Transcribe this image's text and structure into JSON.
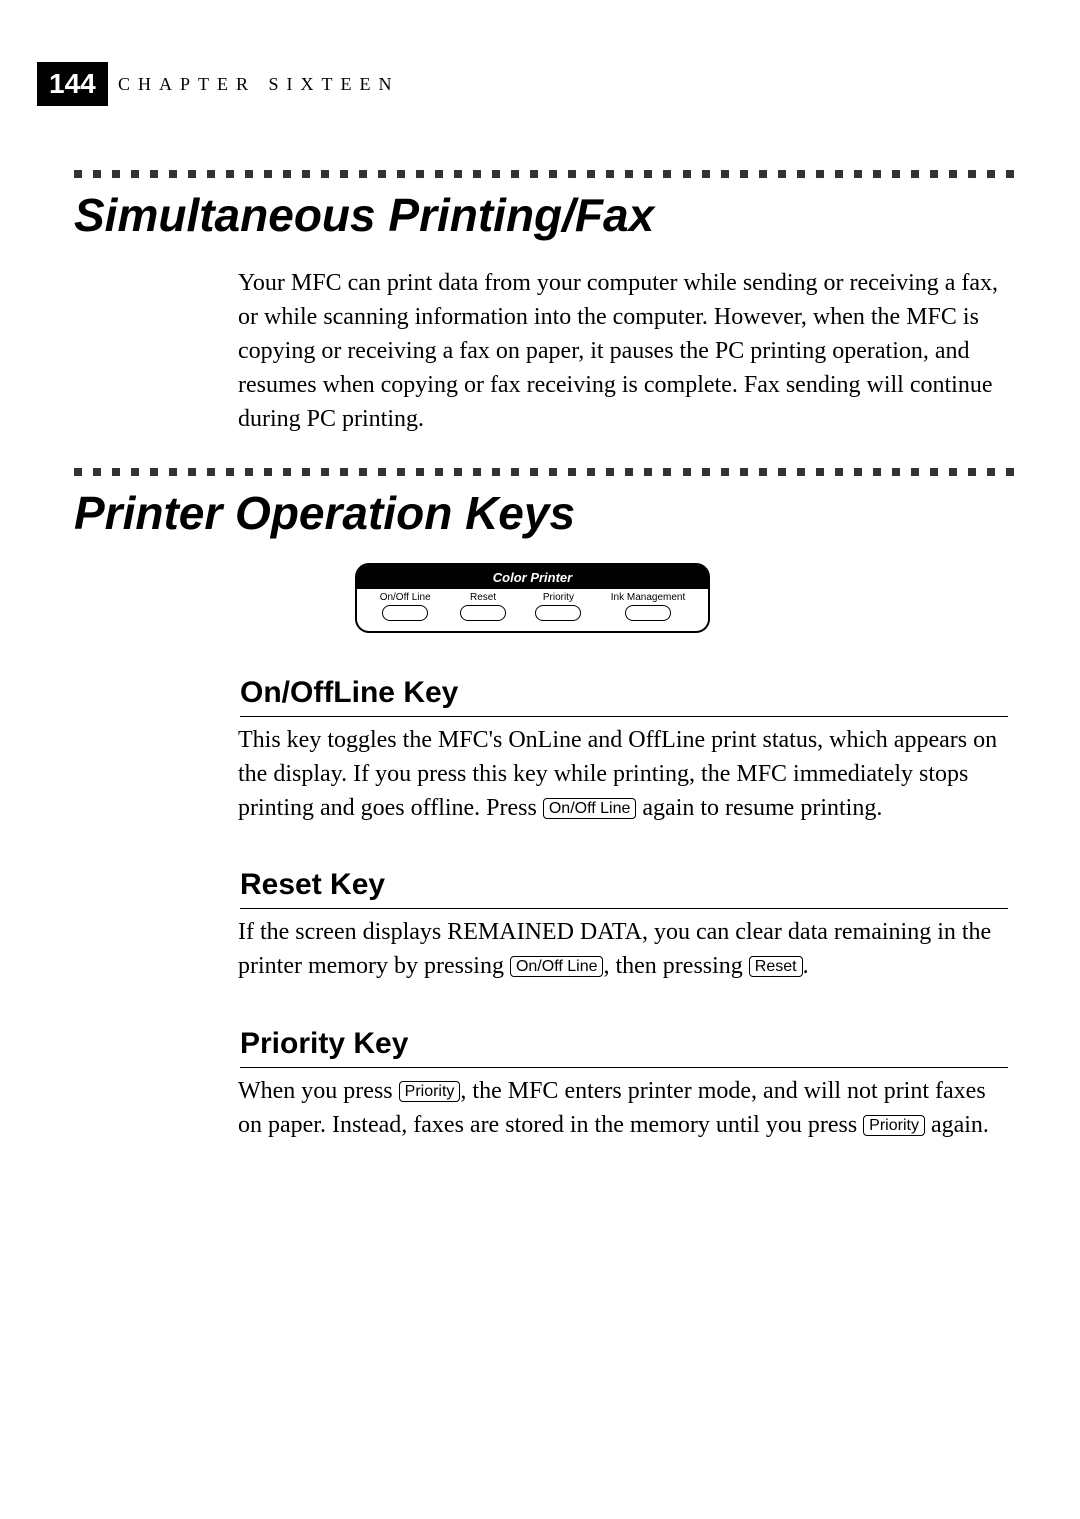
{
  "page_number": "144",
  "chapter_label": "CHAPTER SIXTEEN",
  "heading1": "Simultaneous Printing/Fax",
  "heading2": "Printer Operation Keys",
  "intro_paragraph": "Your MFC can print data from your computer while sending or receiving a fax, or while scanning information into the computer. However, when the MFC is copying or receiving a fax on paper, it pauses the PC printing operation, and resumes when copying or fax receiving is complete. Fax sending will continue during PC printing.",
  "printer_panel": {
    "title": "Color Printer",
    "keys": [
      "On/Off Line",
      "Reset",
      "Priority",
      "Ink Management"
    ]
  },
  "subheading1": "On/OffLine Key",
  "subheading1_text_a": "This key toggles the MFC's OnLine and OffLine print status, which appears on the display. If you press this key while printing, the MFC immediately stops printing and goes offline. Press ",
  "subheading1_text_b": " again to resume printing.",
  "key_onoffline": "On/Off Line",
  "subheading2": "Reset Key",
  "subheading2_text_a": "If the screen displays REMAINED DATA, you can clear data remaining in the printer memory by pressing ",
  "subheading2_text_b": ", then pressing ",
  "subheading2_text_c": ".",
  "key_reset": "Reset",
  "subheading3": "Priority Key",
  "subheading3_text_a": "When you press ",
  "subheading3_text_b": ", the MFC enters printer mode, and will not print faxes on paper. Instead, faxes are stored in the memory until you press ",
  "subheading3_text_c": " again.",
  "key_priority": "Priority",
  "dots_count": 50
}
